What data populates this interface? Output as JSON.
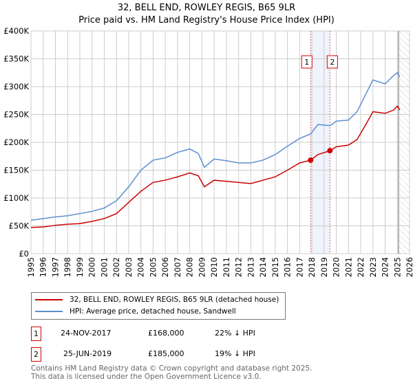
{
  "chart_data": {
    "type": "line",
    "title": "32, BELL END, ROWLEY REGIS, B65 9LR",
    "subtitle": "Price paid vs. HM Land Registry's House Price Index (HPI)",
    "xlim": [
      1995,
      2026
    ],
    "ylim": [
      0,
      400000
    ],
    "x_ticks": [
      "1995",
      "1996",
      "1997",
      "1998",
      "1999",
      "2000",
      "2001",
      "2002",
      "2003",
      "2004",
      "2005",
      "2006",
      "2007",
      "2008",
      "2009",
      "2010",
      "2011",
      "2012",
      "2013",
      "2014",
      "2015",
      "2016",
      "2017",
      "2018",
      "2019",
      "2020",
      "2021",
      "2022",
      "2023",
      "2024",
      "2025",
      "2026"
    ],
    "y_ticks": [
      "£0",
      "£50K",
      "£100K",
      "£150K",
      "£200K",
      "£250K",
      "£300K",
      "£350K",
      "£400K"
    ],
    "grid": true,
    "series": [
      {
        "name": "32, BELL END, ROWLEY REGIS, B65 9LR (detached house)",
        "color": "#cc0000",
        "x": [
          1995,
          1996,
          1997,
          1998,
          1999,
          2000,
          2001,
          2002,
          2003,
          2004,
          2005,
          2006,
          2007,
          2008,
          2008.7,
          2009.2,
          2010,
          2011,
          2012,
          2013,
          2014,
          2015,
          2016,
          2017,
          2017.9,
          2018.5,
          2019.5,
          2020,
          2021,
          2021.7,
          2022.5,
          2023,
          2024,
          2024.7,
          2025,
          2025.2
        ],
        "y": [
          47000,
          48000,
          51000,
          53000,
          54000,
          58000,
          63000,
          72000,
          92000,
          112000,
          128000,
          132000,
          138000,
          145000,
          140000,
          120000,
          132000,
          130000,
          128000,
          126000,
          132000,
          138000,
          150000,
          163000,
          168000,
          178000,
          185000,
          192000,
          195000,
          205000,
          235000,
          255000,
          252000,
          258000,
          265000,
          258000
        ]
      },
      {
        "name": "HPI: Average price, detached house, Sandwell",
        "color": "#5b8fd0",
        "x": [
          1995,
          1996,
          1997,
          1998,
          1999,
          2000,
          2001,
          2002,
          2003,
          2004,
          2005,
          2006,
          2007,
          2008,
          2008.7,
          2009.2,
          2010,
          2011,
          2012,
          2013,
          2014,
          2015,
          2016,
          2017,
          2017.9,
          2018.5,
          2019.5,
          2020,
          2021,
          2021.7,
          2022.5,
          2023,
          2024,
          2024.7,
          2025,
          2025.2
        ],
        "y": [
          60000,
          63000,
          66000,
          68000,
          72000,
          76000,
          82000,
          95000,
          120000,
          150000,
          168000,
          172000,
          182000,
          188000,
          180000,
          155000,
          170000,
          167000,
          163000,
          163000,
          168000,
          178000,
          193000,
          207000,
          215000,
          232000,
          230000,
          238000,
          240000,
          255000,
          290000,
          312000,
          305000,
          320000,
          325000,
          318000
        ]
      }
    ],
    "annotations": [
      {
        "label": "1",
        "x": 2017.9,
        "date": "24-NOV-2017",
        "price": "£168,000",
        "price_value": 168000,
        "hpi": "22% ↓ HPI"
      },
      {
        "label": "2",
        "x": 2019.48,
        "date": "25-JUN-2019",
        "price": "£185,000",
        "price_value": 185000,
        "hpi": "19% ↓ HPI"
      }
    ],
    "forecast_from": 2025.1
  },
  "footer": {
    "line1": "Contains HM Land Registry data © Crown copyright and database right 2025.",
    "line2": "This data is licensed under the Open Government Licence v3.0."
  }
}
